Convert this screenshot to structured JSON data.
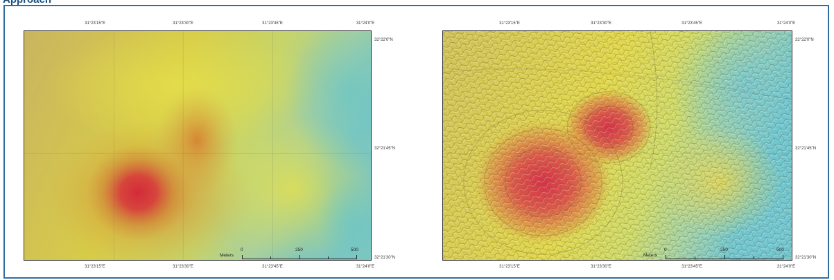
{
  "caption": "Approach",
  "colors": {
    "frame_border": "#2e6da4",
    "ramp_high": "#d9344a",
    "ramp_mid": "#e8d84a",
    "ramp_low": "#6fc4c8"
  },
  "maps": [
    {
      "id": "left",
      "style": "smooth elevation color ramp",
      "top_ticks": [
        "31°23'15\"E",
        "31°23'30\"E",
        "31°23'45\"E",
        "31°24'0\"E"
      ],
      "bottom_ticks": [
        "31°23'15\"E",
        "31°23'30\"E",
        "31°23'45\"E",
        "31°24'0\"E"
      ],
      "right_ticks": [
        "32°22'0\"N",
        "32°21'45\"N",
        "32°21'30\"N"
      ],
      "scale": {
        "unit": "Meters",
        "labels": [
          "0",
          "250",
          "500"
        ]
      }
    },
    {
      "id": "right",
      "style": "hillshaded elevation color ramp",
      "top_ticks": [
        "31°23'15\"E",
        "31°23'30\"E",
        "31°23'45\"E",
        "31°24'0\"E"
      ],
      "bottom_ticks": [
        "31°23'15\"E",
        "31°23'30\"E",
        "31°23'45\"E",
        "31°24'0\"E"
      ],
      "right_ticks": [
        "32°22'0\"N",
        "32°21'45\"N",
        "32°21'30\"N"
      ],
      "scale": {
        "unit": "Meters",
        "labels": [
          "0",
          "250",
          "500"
        ]
      }
    }
  ]
}
